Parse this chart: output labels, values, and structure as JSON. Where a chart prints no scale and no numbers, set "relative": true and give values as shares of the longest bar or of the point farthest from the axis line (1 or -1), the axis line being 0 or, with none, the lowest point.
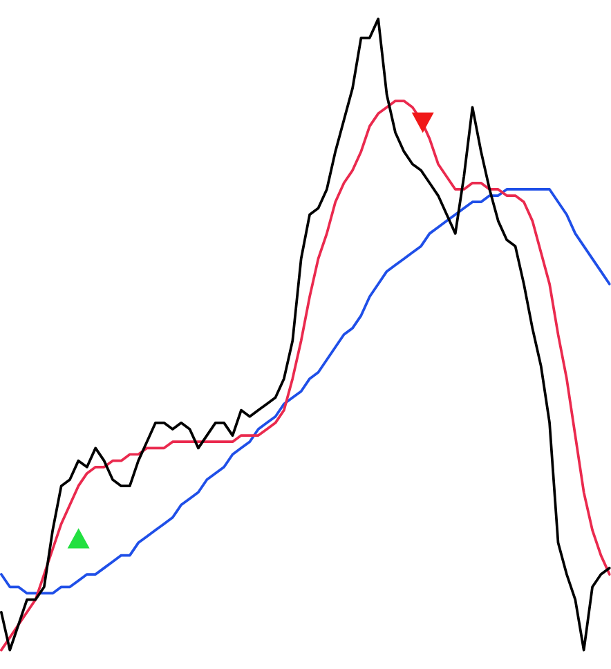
{
  "chart_data": {
    "type": "line",
    "relative": true,
    "categories": [
      null,
      null,
      null,
      null,
      null,
      null,
      null,
      null,
      null,
      null,
      null,
      null,
      null,
      null,
      null,
      null,
      null,
      null,
      null,
      null,
      null,
      null,
      null,
      null,
      null,
      null,
      null,
      null,
      null,
      null,
      null,
      null,
      null,
      null,
      null,
      null,
      null,
      null,
      null,
      null,
      null,
      null,
      null,
      null,
      null,
      null,
      null,
      null,
      null,
      null,
      null,
      null,
      null,
      null,
      null,
      null,
      null,
      null,
      null,
      null,
      null,
      null,
      null,
      null,
      null,
      null,
      null,
      null,
      null,
      null,
      null,
      null
    ],
    "series": [
      {
        "color": "#1f4fe8",
        "values": [
          0.12,
          0.1,
          0.1,
          0.09,
          0.09,
          0.09,
          0.09,
          0.1,
          0.1,
          0.11,
          0.12,
          0.12,
          0.13,
          0.14,
          0.15,
          0.15,
          0.17,
          0.18,
          0.19,
          0.2,
          0.21,
          0.23,
          0.24,
          0.25,
          0.27,
          0.28,
          0.29,
          0.31,
          0.32,
          0.33,
          0.35,
          0.36,
          0.37,
          0.39,
          0.4,
          0.41,
          0.43,
          0.44,
          0.46,
          0.48,
          0.5,
          0.51,
          0.53,
          0.56,
          0.58,
          0.6,
          0.61,
          0.62,
          0.63,
          0.64,
          0.66,
          0.67,
          0.68,
          0.69,
          0.7,
          0.71,
          0.71,
          0.72,
          0.72,
          0.73,
          0.73,
          0.73,
          0.73,
          0.73,
          0.73,
          0.71,
          0.69,
          0.66,
          0.64,
          0.62,
          0.6,
          0.58
        ]
      },
      {
        "color": "#ea2a4e",
        "values": [
          0.0,
          0.02,
          0.04,
          0.06,
          0.08,
          0.12,
          0.16,
          0.2,
          0.23,
          0.26,
          0.28,
          0.29,
          0.29,
          0.3,
          0.3,
          0.31,
          0.31,
          0.32,
          0.32,
          0.32,
          0.33,
          0.33,
          0.33,
          0.33,
          0.33,
          0.33,
          0.33,
          0.33,
          0.34,
          0.34,
          0.34,
          0.35,
          0.36,
          0.38,
          0.43,
          0.49,
          0.56,
          0.62,
          0.66,
          0.71,
          0.74,
          0.76,
          0.79,
          0.83,
          0.85,
          0.86,
          0.87,
          0.87,
          0.86,
          0.84,
          0.81,
          0.77,
          0.75,
          0.73,
          0.73,
          0.74,
          0.74,
          0.73,
          0.73,
          0.72,
          0.72,
          0.71,
          0.68,
          0.63,
          0.58,
          0.5,
          0.43,
          0.34,
          0.25,
          0.19,
          0.15,
          0.12
        ]
      },
      {
        "color": "#000000",
        "values": [
          0.06,
          0.0,
          0.04,
          0.08,
          0.08,
          0.1,
          0.19,
          0.26,
          0.27,
          0.3,
          0.29,
          0.32,
          0.3,
          0.27,
          0.26,
          0.26,
          0.3,
          0.33,
          0.36,
          0.36,
          0.35,
          0.36,
          0.35,
          0.32,
          0.34,
          0.36,
          0.36,
          0.34,
          0.38,
          0.37,
          0.38,
          0.39,
          0.4,
          0.43,
          0.49,
          0.62,
          0.69,
          0.7,
          0.73,
          0.79,
          0.84,
          0.89,
          0.97,
          0.97,
          1.0,
          0.88,
          0.82,
          0.79,
          0.77,
          0.76,
          0.74,
          0.72,
          0.69,
          0.66,
          0.75,
          0.86,
          0.79,
          0.73,
          0.68,
          0.65,
          0.64,
          0.58,
          0.51,
          0.45,
          0.36,
          0.17,
          0.12,
          0.08,
          0.0,
          0.1,
          0.12,
          0.13
        ]
      }
    ]
  }
}
